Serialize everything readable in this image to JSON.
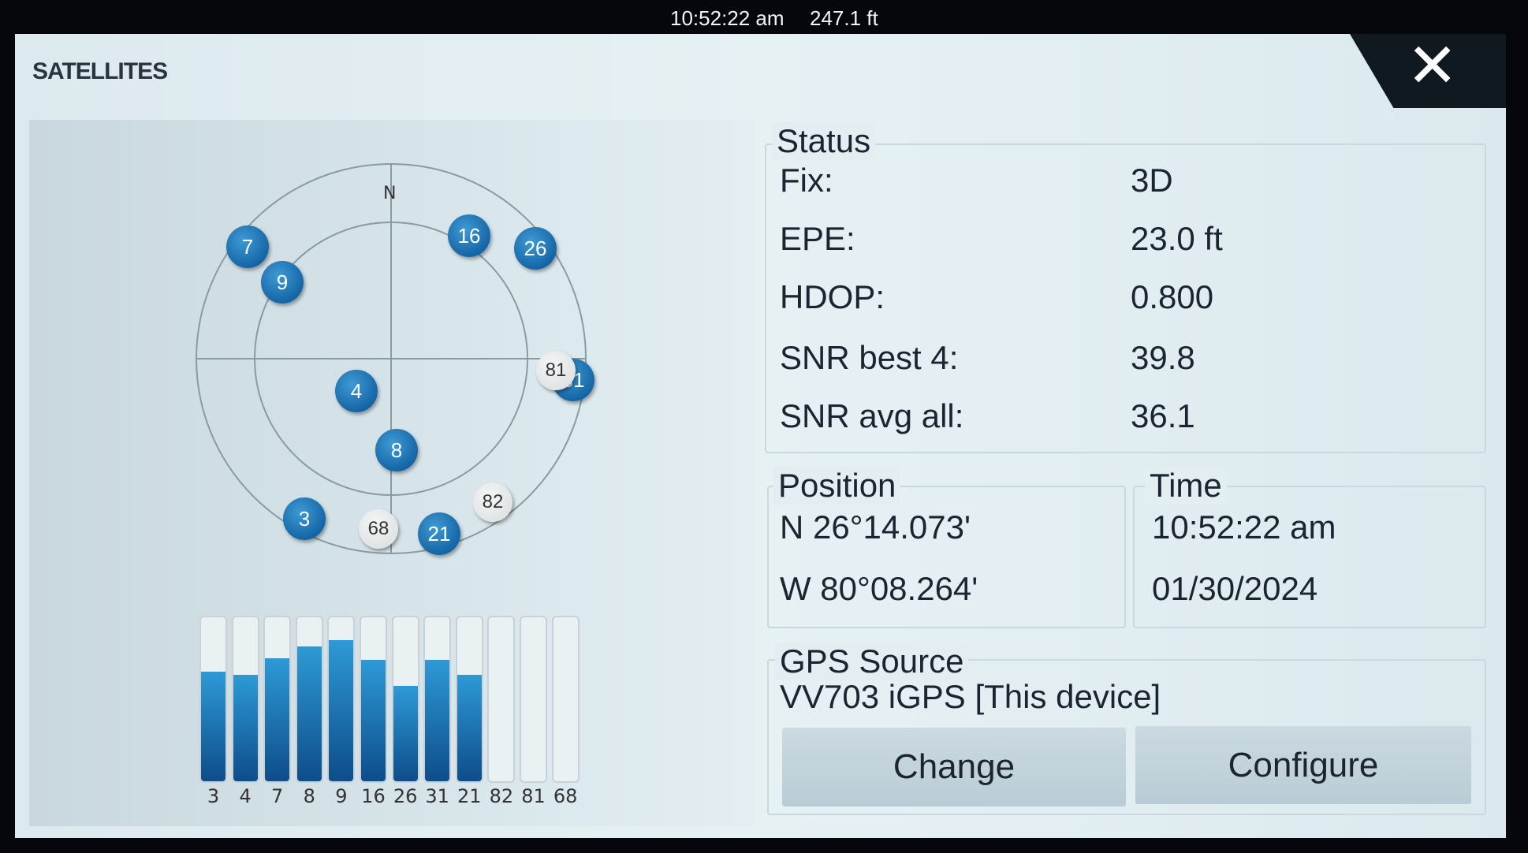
{
  "statusbar": {
    "time": "10:52:22 am",
    "altitude": "247.1 ft"
  },
  "dialog": {
    "title": "SATELLITES",
    "close_icon": "close-icon"
  },
  "skyplot": {
    "north_label": "N",
    "satellites": [
      {
        "id": "7",
        "state": "used"
      },
      {
        "id": "9",
        "state": "used"
      },
      {
        "id": "16",
        "state": "used"
      },
      {
        "id": "26",
        "state": "used"
      },
      {
        "id": "31",
        "state": "used"
      },
      {
        "id": "81",
        "state": "not-used"
      },
      {
        "id": "4",
        "state": "used"
      },
      {
        "id": "8",
        "state": "used"
      },
      {
        "id": "3",
        "state": "used"
      },
      {
        "id": "68",
        "state": "not-used"
      },
      {
        "id": "21",
        "state": "used"
      },
      {
        "id": "82",
        "state": "not-used"
      }
    ]
  },
  "signal_bars": {
    "labels": [
      "3",
      "4",
      "7",
      "8",
      "9",
      "16",
      "26",
      "31",
      "21",
      "82",
      "81",
      "68"
    ],
    "levels": [
      0.67,
      0.65,
      0.75,
      0.82,
      0.86,
      0.74,
      0.58,
      0.74,
      0.65,
      0,
      0,
      0
    ],
    "fill_color": "#1a78b8"
  },
  "status": {
    "title": "Status",
    "rows": [
      {
        "label": "Fix:",
        "value": "3D"
      },
      {
        "label": "EPE:",
        "value": "23.0 ft"
      },
      {
        "label": "HDOP:",
        "value": "0.800"
      },
      {
        "label": "SNR best 4:",
        "value": "39.8"
      },
      {
        "label": "SNR avg all:",
        "value": "36.1"
      }
    ]
  },
  "position": {
    "title": "Position",
    "lat": "N  26°14.073'",
    "lon": "W  80°08.264'"
  },
  "time": {
    "title": "Time",
    "time": "10:52:22 am",
    "date": "01/30/2024"
  },
  "gps_source": {
    "title": "GPS Source",
    "device": "VV703 iGPS [This device]",
    "change_label": "Change",
    "configure_label": "Configure"
  }
}
